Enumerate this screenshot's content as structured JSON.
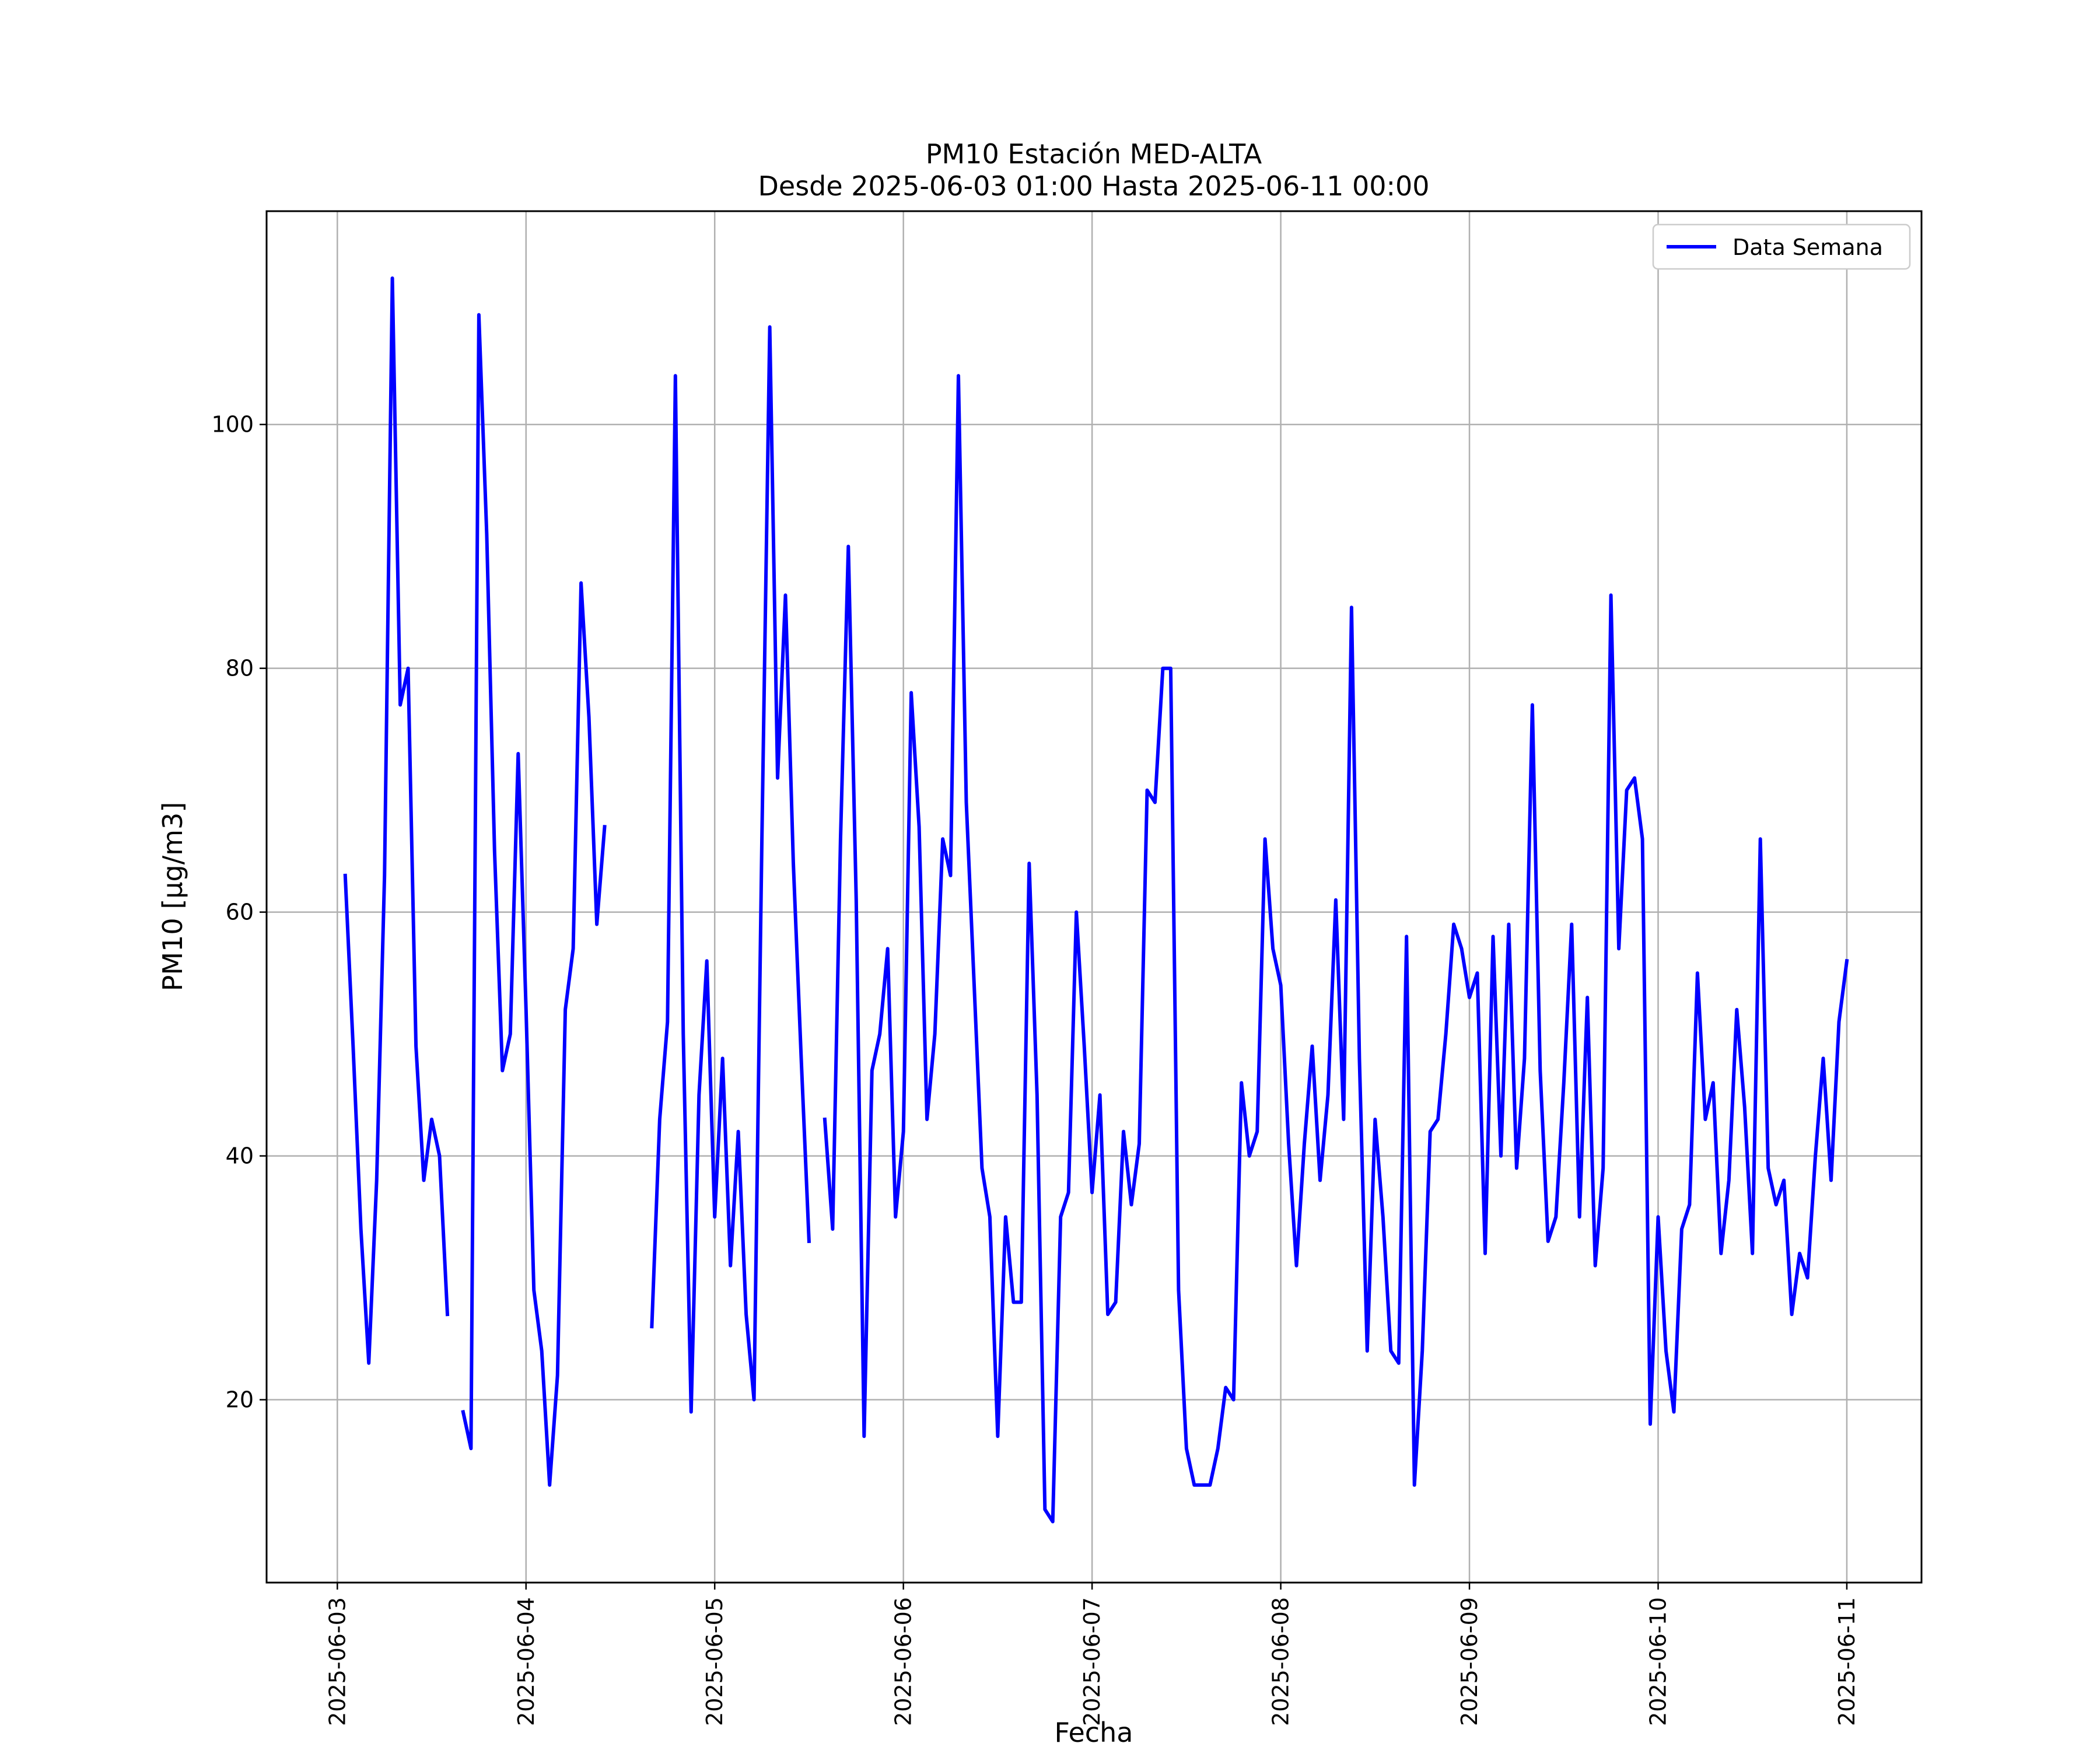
{
  "chart_data": {
    "type": "line",
    "title": "PM10 Estación MED-ALTA",
    "subtitle": "Desde 2025-06-03 01:00 Hasta 2025-06-11 00:00",
    "xlabel": "Fecha",
    "ylabel_main": "PM10 ",
    "ylabel_unit": "[μg/m3]",
    "x_ticks": [
      "2025-06-03",
      "2025-06-04",
      "2025-06-05",
      "2025-06-06",
      "2025-06-07",
      "2025-06-08",
      "2025-06-09",
      "2025-06-10",
      "2025-06-11"
    ],
    "y_ticks": [
      20,
      40,
      60,
      80,
      100
    ],
    "xlim": [
      "2025-06-02T15:00",
      "2025-06-11T09:30"
    ],
    "ylim": [
      5,
      117.5
    ],
    "grid": true,
    "legend_position": "top-right",
    "line_color": "#0000ff",
    "series": [
      {
        "name": "Data Semana",
        "points": [
          [
            "2025-06-03T01:00",
            63
          ],
          [
            "2025-06-03T02:00",
            49
          ],
          [
            "2025-06-03T03:00",
            34
          ],
          [
            "2025-06-03T04:00",
            23
          ],
          [
            "2025-06-03T05:00",
            38
          ],
          [
            "2025-06-03T06:00",
            63
          ],
          [
            "2025-06-03T07:00",
            112
          ],
          [
            "2025-06-03T08:00",
            77
          ],
          [
            "2025-06-03T09:00",
            80
          ],
          [
            "2025-06-03T10:00",
            49
          ],
          [
            "2025-06-03T11:00",
            38
          ],
          [
            "2025-06-03T12:00",
            43
          ],
          [
            "2025-06-03T13:00",
            40
          ],
          [
            "2025-06-03T14:00",
            27
          ],
          [
            "2025-06-03T15:00",
            null
          ],
          [
            "2025-06-03T16:00",
            19
          ],
          [
            "2025-06-03T17:00",
            16
          ],
          [
            "2025-06-03T18:00",
            109
          ],
          [
            "2025-06-03T19:00",
            91
          ],
          [
            "2025-06-03T20:00",
            65
          ],
          [
            "2025-06-03T21:00",
            47
          ],
          [
            "2025-06-03T22:00",
            50
          ],
          [
            "2025-06-03T23:00",
            73
          ],
          [
            "2025-06-04T00:00",
            52
          ],
          [
            "2025-06-04T01:00",
            29
          ],
          [
            "2025-06-04T02:00",
            24
          ],
          [
            "2025-06-04T03:00",
            13
          ],
          [
            "2025-06-04T04:00",
            22
          ],
          [
            "2025-06-04T05:00",
            52
          ],
          [
            "2025-06-04T06:00",
            57
          ],
          [
            "2025-06-04T07:00",
            87
          ],
          [
            "2025-06-04T08:00",
            76
          ],
          [
            "2025-06-04T09:00",
            59
          ],
          [
            "2025-06-04T10:00",
            67
          ],
          [
            "2025-06-04T11:00",
            null
          ],
          [
            "2025-06-04T12:00",
            null
          ],
          [
            "2025-06-04T13:00",
            null
          ],
          [
            "2025-06-04T14:00",
            null
          ],
          [
            "2025-06-04T15:00",
            null
          ],
          [
            "2025-06-04T16:00",
            26
          ],
          [
            "2025-06-04T17:00",
            43
          ],
          [
            "2025-06-04T18:00",
            51
          ],
          [
            "2025-06-04T19:00",
            104
          ],
          [
            "2025-06-04T20:00",
            50
          ],
          [
            "2025-06-04T21:00",
            19
          ],
          [
            "2025-06-04T22:00",
            45
          ],
          [
            "2025-06-04T23:00",
            56
          ],
          [
            "2025-06-05T00:00",
            35
          ],
          [
            "2025-06-05T01:00",
            48
          ],
          [
            "2025-06-05T02:00",
            31
          ],
          [
            "2025-06-05T03:00",
            42
          ],
          [
            "2025-06-05T04:00",
            27
          ],
          [
            "2025-06-05T05:00",
            20
          ],
          [
            "2025-06-05T06:00",
            66
          ],
          [
            "2025-06-05T07:00",
            108
          ],
          [
            "2025-06-05T08:00",
            71
          ],
          [
            "2025-06-05T09:00",
            86
          ],
          [
            "2025-06-05T10:00",
            64
          ],
          [
            "2025-06-05T11:00",
            48
          ],
          [
            "2025-06-05T12:00",
            33
          ],
          [
            "2025-06-05T13:00",
            null
          ],
          [
            "2025-06-05T14:00",
            43
          ],
          [
            "2025-06-05T15:00",
            34
          ],
          [
            "2025-06-05T16:00",
            66
          ],
          [
            "2025-06-05T17:00",
            90
          ],
          [
            "2025-06-05T18:00",
            61
          ],
          [
            "2025-06-05T19:00",
            17
          ],
          [
            "2025-06-05T20:00",
            47
          ],
          [
            "2025-06-05T21:00",
            50
          ],
          [
            "2025-06-05T22:00",
            57
          ],
          [
            "2025-06-05T23:00",
            35
          ],
          [
            "2025-06-06T00:00",
            42
          ],
          [
            "2025-06-06T01:00",
            78
          ],
          [
            "2025-06-06T02:00",
            67
          ],
          [
            "2025-06-06T03:00",
            43
          ],
          [
            "2025-06-06T04:00",
            50
          ],
          [
            "2025-06-06T05:00",
            66
          ],
          [
            "2025-06-06T06:00",
            63
          ],
          [
            "2025-06-06T07:00",
            104
          ],
          [
            "2025-06-06T08:00",
            69
          ],
          [
            "2025-06-06T09:00",
            54
          ],
          [
            "2025-06-06T10:00",
            39
          ],
          [
            "2025-06-06T11:00",
            35
          ],
          [
            "2025-06-06T12:00",
            17
          ],
          [
            "2025-06-06T13:00",
            35
          ],
          [
            "2025-06-06T14:00",
            28
          ],
          [
            "2025-06-06T15:00",
            28
          ],
          [
            "2025-06-06T16:00",
            64
          ],
          [
            "2025-06-06T17:00",
            45
          ],
          [
            "2025-06-06T18:00",
            11
          ],
          [
            "2025-06-06T19:00",
            10
          ],
          [
            "2025-06-06T20:00",
            35
          ],
          [
            "2025-06-06T21:00",
            37
          ],
          [
            "2025-06-06T22:00",
            60
          ],
          [
            "2025-06-06T23:00",
            49
          ],
          [
            "2025-06-07T00:00",
            37
          ],
          [
            "2025-06-07T01:00",
            45
          ],
          [
            "2025-06-07T02:00",
            27
          ],
          [
            "2025-06-07T03:00",
            28
          ],
          [
            "2025-06-07T04:00",
            42
          ],
          [
            "2025-06-07T05:00",
            36
          ],
          [
            "2025-06-07T06:00",
            41
          ],
          [
            "2025-06-07T07:00",
            70
          ],
          [
            "2025-06-07T08:00",
            69
          ],
          [
            "2025-06-07T09:00",
            80
          ],
          [
            "2025-06-07T10:00",
            80
          ],
          [
            "2025-06-07T11:00",
            29
          ],
          [
            "2025-06-07T12:00",
            16
          ],
          [
            "2025-06-07T13:00",
            13
          ],
          [
            "2025-06-07T14:00",
            13
          ],
          [
            "2025-06-07T15:00",
            13
          ],
          [
            "2025-06-07T16:00",
            16
          ],
          [
            "2025-06-07T17:00",
            21
          ],
          [
            "2025-06-07T18:00",
            20
          ],
          [
            "2025-06-07T19:00",
            46
          ],
          [
            "2025-06-07T20:00",
            40
          ],
          [
            "2025-06-07T21:00",
            42
          ],
          [
            "2025-06-07T22:00",
            66
          ],
          [
            "2025-06-07T23:00",
            57
          ],
          [
            "2025-06-08T00:00",
            54
          ],
          [
            "2025-06-08T01:00",
            41
          ],
          [
            "2025-06-08T02:00",
            31
          ],
          [
            "2025-06-08T03:00",
            41
          ],
          [
            "2025-06-08T04:00",
            49
          ],
          [
            "2025-06-08T05:00",
            38
          ],
          [
            "2025-06-08T06:00",
            45
          ],
          [
            "2025-06-08T07:00",
            61
          ],
          [
            "2025-06-08T08:00",
            43
          ],
          [
            "2025-06-08T09:00",
            85
          ],
          [
            "2025-06-08T10:00",
            48
          ],
          [
            "2025-06-08T11:00",
            24
          ],
          [
            "2025-06-08T12:00",
            43
          ],
          [
            "2025-06-08T13:00",
            35
          ],
          [
            "2025-06-08T14:00",
            24
          ],
          [
            "2025-06-08T15:00",
            23
          ],
          [
            "2025-06-08T16:00",
            58
          ],
          [
            "2025-06-08T17:00",
            13
          ],
          [
            "2025-06-08T18:00",
            24
          ],
          [
            "2025-06-08T19:00",
            42
          ],
          [
            "2025-06-08T20:00",
            43
          ],
          [
            "2025-06-08T21:00",
            50
          ],
          [
            "2025-06-08T22:00",
            59
          ],
          [
            "2025-06-08T23:00",
            57
          ],
          [
            "2025-06-09T00:00",
            53
          ],
          [
            "2025-06-09T01:00",
            55
          ],
          [
            "2025-06-09T02:00",
            32
          ],
          [
            "2025-06-09T03:00",
            58
          ],
          [
            "2025-06-09T04:00",
            40
          ],
          [
            "2025-06-09T05:00",
            59
          ],
          [
            "2025-06-09T06:00",
            39
          ],
          [
            "2025-06-09T07:00",
            48
          ],
          [
            "2025-06-09T08:00",
            77
          ],
          [
            "2025-06-09T09:00",
            47
          ],
          [
            "2025-06-09T10:00",
            33
          ],
          [
            "2025-06-09T11:00",
            35
          ],
          [
            "2025-06-09T12:00",
            46
          ],
          [
            "2025-06-09T13:00",
            59
          ],
          [
            "2025-06-09T14:00",
            35
          ],
          [
            "2025-06-09T15:00",
            53
          ],
          [
            "2025-06-09T16:00",
            31
          ],
          [
            "2025-06-09T17:00",
            39
          ],
          [
            "2025-06-09T18:00",
            86
          ],
          [
            "2025-06-09T19:00",
            57
          ],
          [
            "2025-06-09T20:00",
            70
          ],
          [
            "2025-06-09T21:00",
            71
          ],
          [
            "2025-06-09T22:00",
            66
          ],
          [
            "2025-06-09T23:00",
            18
          ],
          [
            "2025-06-10T00:00",
            35
          ],
          [
            "2025-06-10T01:00",
            24
          ],
          [
            "2025-06-10T02:00",
            19
          ],
          [
            "2025-06-10T03:00",
            34
          ],
          [
            "2025-06-10T04:00",
            36
          ],
          [
            "2025-06-10T05:00",
            55
          ],
          [
            "2025-06-10T06:00",
            43
          ],
          [
            "2025-06-10T07:00",
            46
          ],
          [
            "2025-06-10T08:00",
            32
          ],
          [
            "2025-06-10T09:00",
            38
          ],
          [
            "2025-06-10T10:00",
            52
          ],
          [
            "2025-06-10T11:00",
            44
          ],
          [
            "2025-06-10T12:00",
            32
          ],
          [
            "2025-06-10T13:00",
            66
          ],
          [
            "2025-06-10T14:00",
            39
          ],
          [
            "2025-06-10T15:00",
            36
          ],
          [
            "2025-06-10T16:00",
            38
          ],
          [
            "2025-06-10T17:00",
            27
          ],
          [
            "2025-06-10T18:00",
            32
          ],
          [
            "2025-06-10T19:00",
            30
          ],
          [
            "2025-06-10T20:00",
            40
          ],
          [
            "2025-06-10T21:00",
            48
          ],
          [
            "2025-06-10T22:00",
            38
          ],
          [
            "2025-06-10T23:00",
            51
          ],
          [
            "2025-06-11T00:00",
            56
          ]
        ]
      }
    ]
  }
}
